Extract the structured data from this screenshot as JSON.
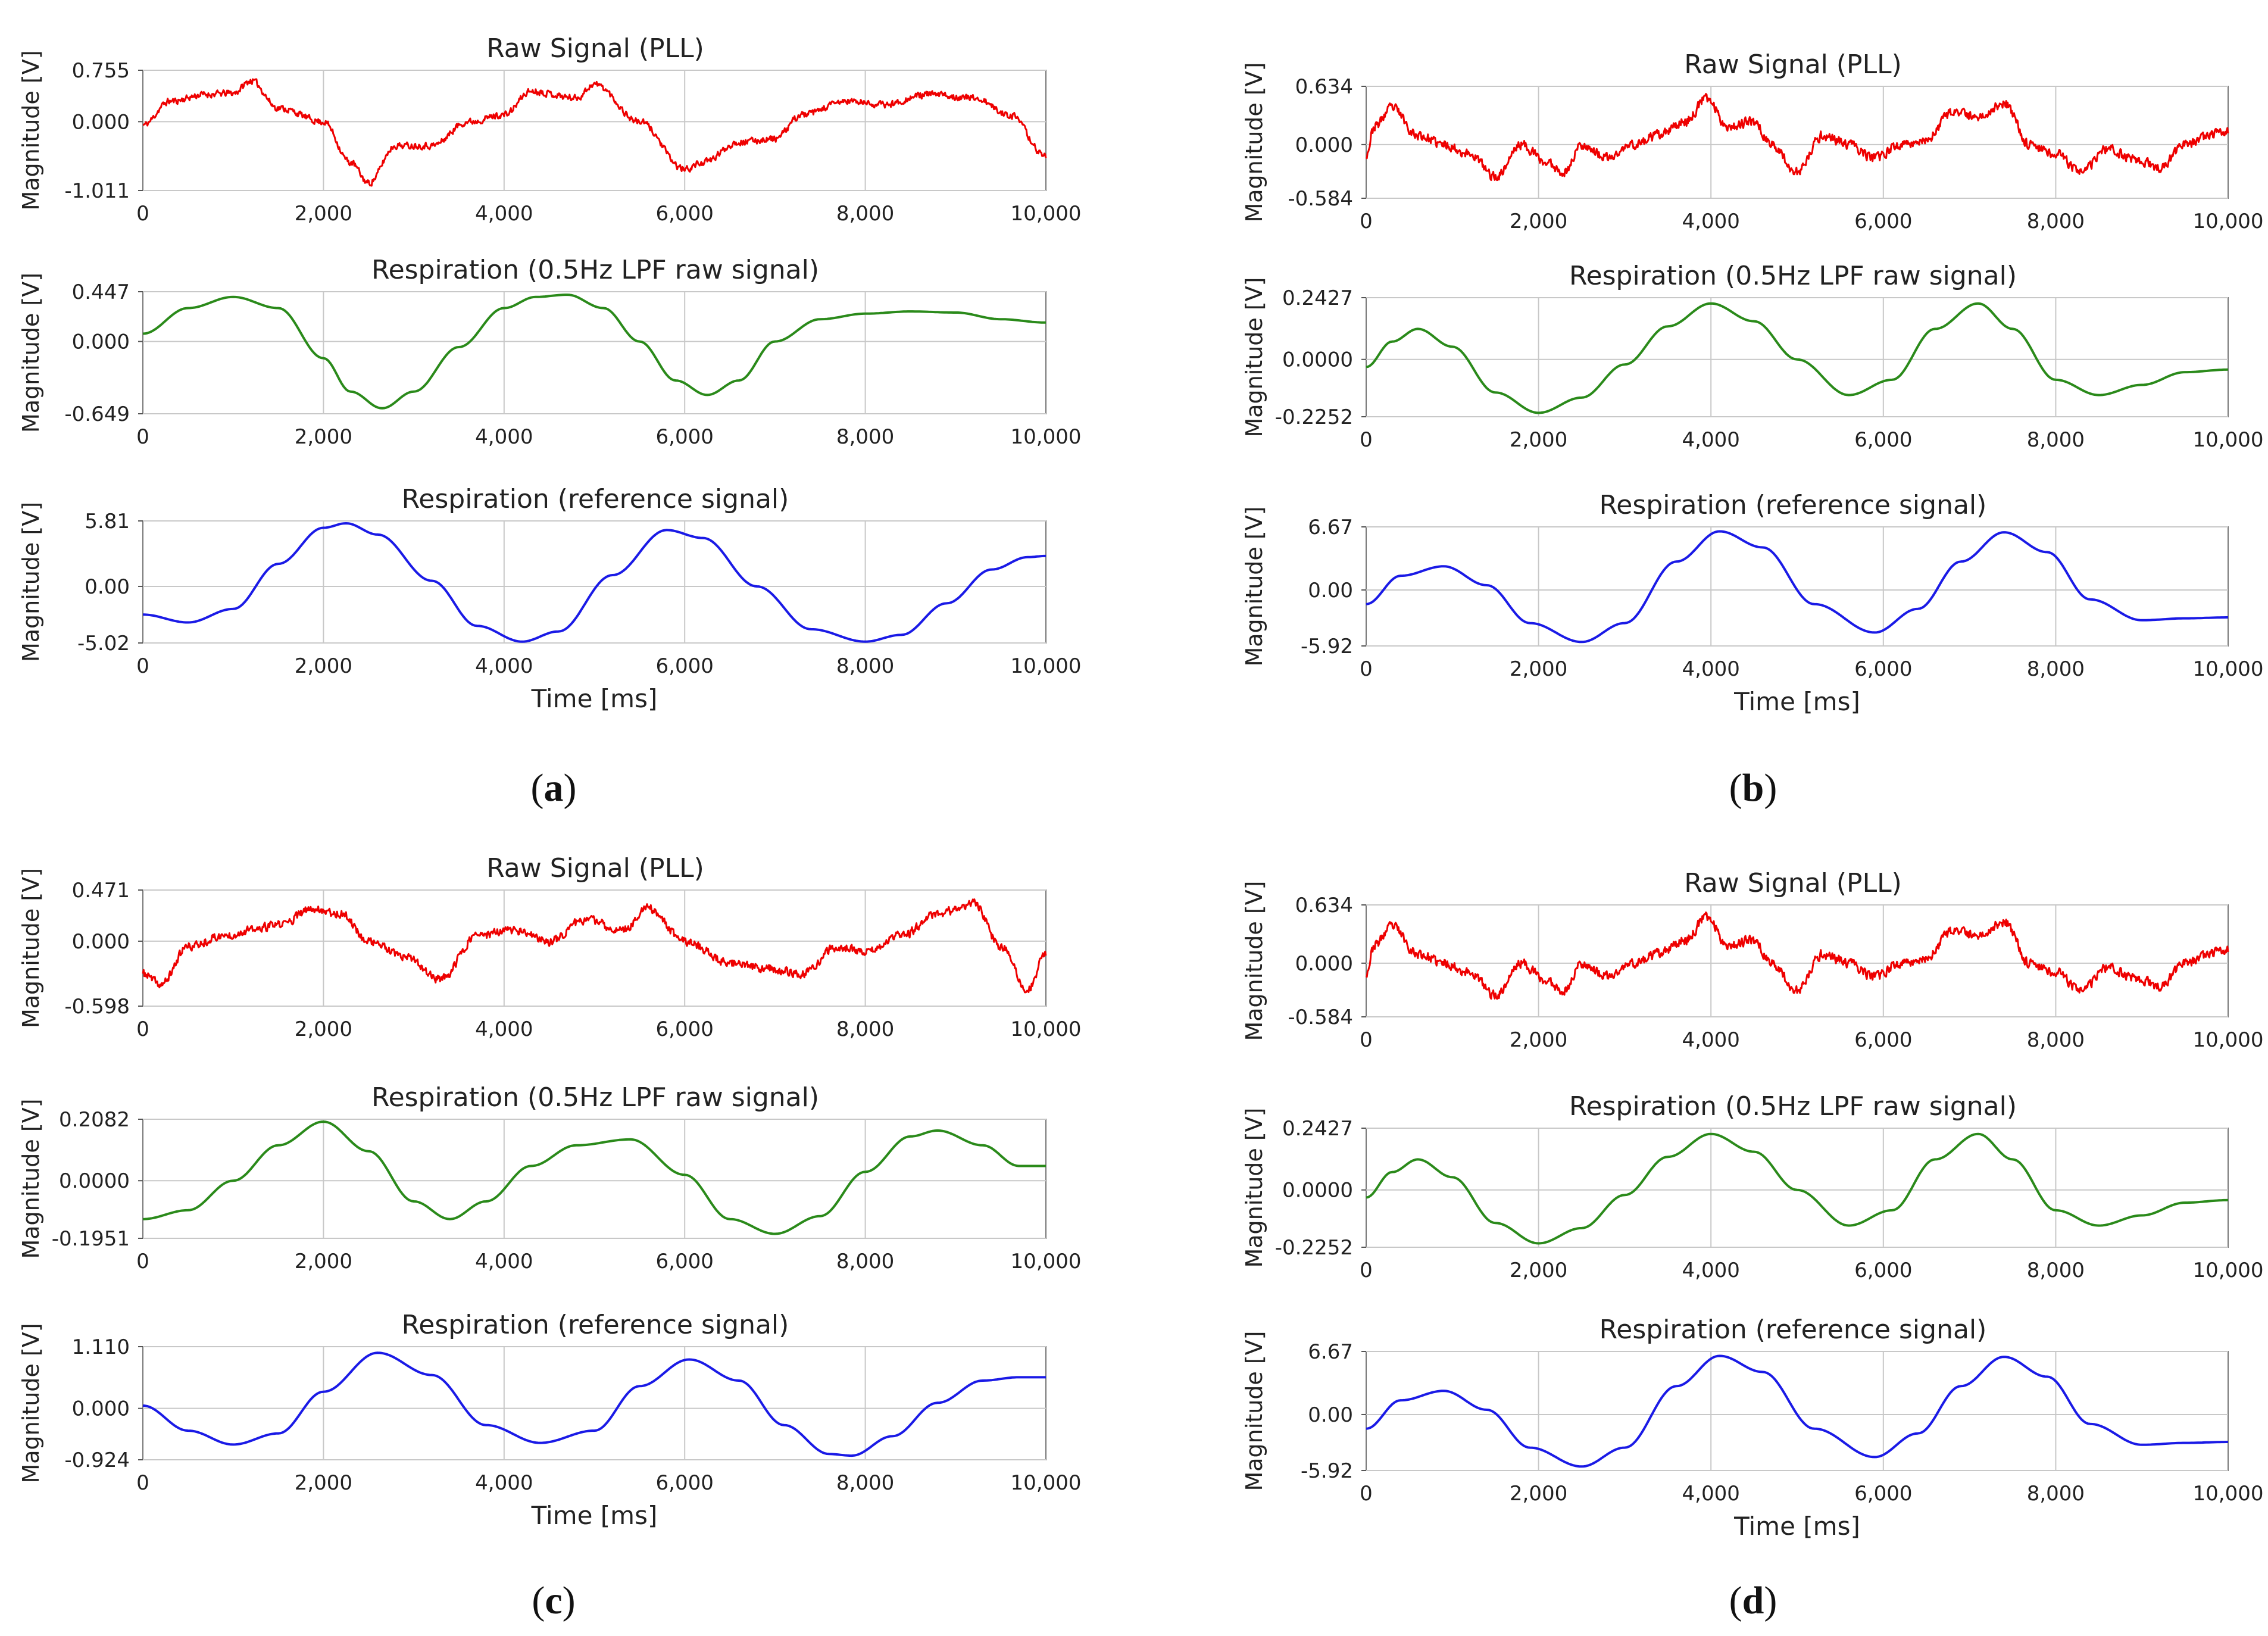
{
  "figure": {
    "captions": [
      {
        "open": "(",
        "letter": "a",
        "close": ")"
      },
      {
        "open": "(",
        "letter": "b",
        "close": ")"
      },
      {
        "open": "(",
        "letter": "c",
        "close": ")"
      },
      {
        "open": "(",
        "letter": "d",
        "close": ")"
      }
    ],
    "x_tick_labels": [
      "0",
      "2,000",
      "4,000",
      "6,000",
      "8,000",
      "10,000"
    ],
    "colors": {
      "raw": "#ee0000",
      "lpf": "#2a8a1a",
      "reference": "#1a1ae6",
      "grid": "#c8c8c8"
    }
  },
  "chart_data": [
    {
      "type": "line",
      "panel": "a",
      "title": "Raw Signal (PLL)",
      "xlabel": "",
      "ylabel": "Magnitude [V]",
      "xlim": [
        0,
        10000
      ],
      "ylim": [
        -1.011,
        0.755
      ],
      "yticks": [
        0.755,
        0.0,
        -1.011
      ],
      "ytick_labels": [
        "0.755",
        "0.000",
        "-1.011"
      ],
      "series": [
        {
          "color": "#ee0000",
          "noise": 0.09,
          "seed": 11,
          "x": [
            0,
            300,
            700,
            1000,
            1200,
            1500,
            2000,
            2300,
            2500,
            2800,
            3200,
            3600,
            4000,
            4300,
            4800,
            5000,
            5500,
            6000,
            6200,
            6600,
            7000,
            7300,
            7800,
            8200,
            8700,
            9200,
            9600,
            10000
          ],
          "y": [
            -0.05,
            0.3,
            0.4,
            0.42,
            0.6,
            0.2,
            0.0,
            -0.6,
            -0.9,
            -0.35,
            -0.35,
            0.0,
            0.1,
            0.45,
            0.35,
            0.55,
            0.0,
            -0.7,
            -0.6,
            -0.3,
            -0.25,
            0.1,
            0.3,
            0.25,
            0.4,
            0.35,
            0.1,
            -0.5
          ]
        }
      ]
    },
    {
      "type": "line",
      "panel": "a",
      "title": "Respiration (0.5Hz LPF raw signal)",
      "xlabel": "",
      "ylabel": "Magnitude [V]",
      "xlim": [
        0,
        10000
      ],
      "ylim": [
        -0.649,
        0.447
      ],
      "yticks": [
        0.447,
        0.0,
        -0.649
      ],
      "ytick_labels": [
        "0.447",
        "0.000",
        "-0.649"
      ],
      "series": [
        {
          "color": "#2a8a1a",
          "x": [
            0,
            500,
            1000,
            1500,
            2000,
            2300,
            2650,
            3000,
            3500,
            4000,
            4350,
            4700,
            5100,
            5500,
            5900,
            6250,
            6600,
            7000,
            7500,
            8000,
            8500,
            9000,
            9500,
            10000
          ],
          "y": [
            0.07,
            0.3,
            0.4,
            0.3,
            -0.15,
            -0.45,
            -0.6,
            -0.45,
            -0.05,
            0.3,
            0.4,
            0.42,
            0.3,
            0.0,
            -0.35,
            -0.48,
            -0.35,
            0.0,
            0.2,
            0.25,
            0.27,
            0.26,
            0.2,
            0.17
          ]
        }
      ]
    },
    {
      "type": "line",
      "panel": "a",
      "title": "Respiration (reference signal)",
      "xlabel": "Time [ms]",
      "ylabel": "Magnitude [V]",
      "xlim": [
        0,
        10000
      ],
      "ylim": [
        -5.02,
        5.81
      ],
      "yticks": [
        5.81,
        0.0,
        -5.02
      ],
      "ytick_labels": [
        "5.81",
        "0.00",
        "-5.02"
      ],
      "series": [
        {
          "color": "#1a1ae6",
          "x": [
            0,
            500,
            1000,
            1500,
            2000,
            2250,
            2600,
            3200,
            3700,
            4200,
            4600,
            5200,
            5800,
            6200,
            6800,
            7400,
            8000,
            8400,
            8900,
            9400,
            9800,
            10000
          ],
          "y": [
            -2.5,
            -3.2,
            -2.0,
            2.0,
            5.2,
            5.6,
            4.6,
            0.5,
            -3.5,
            -4.9,
            -4.0,
            1.0,
            5.0,
            4.3,
            0.0,
            -3.8,
            -4.9,
            -4.3,
            -1.5,
            1.5,
            2.6,
            2.7
          ]
        }
      ]
    },
    {
      "type": "line",
      "panel": "b",
      "title": "Raw Signal (PLL)",
      "xlabel": "",
      "ylabel": "Magnitude [V]",
      "xlim": [
        0,
        10000
      ],
      "ylim": [
        -0.584,
        0.634
      ],
      "yticks": [
        0.634,
        0.0,
        -0.584
      ],
      "ytick_labels": [
        "0.634",
        "0.000",
        "-0.584"
      ],
      "series": [
        {
          "color": "#ee0000",
          "noise": 0.14,
          "seed": 23,
          "x": [
            0,
            100,
            300,
            600,
            900,
            1200,
            1500,
            1800,
            2100,
            2300,
            2500,
            2800,
            3100,
            3400,
            3700,
            3950,
            4200,
            4500,
            4700,
            5000,
            5300,
            5600,
            5900,
            6200,
            6500,
            6800,
            7100,
            7400,
            7700,
            8000,
            8300,
            8600,
            8900,
            9200,
            9500,
            9800,
            10000
          ],
          "y": [
            -0.1,
            0.2,
            0.4,
            0.1,
            0.0,
            -0.1,
            -0.35,
            0.0,
            -0.2,
            -0.3,
            0.0,
            -0.15,
            0.0,
            0.1,
            0.25,
            0.5,
            0.2,
            0.25,
            0.0,
            -0.3,
            0.1,
            0.0,
            -0.15,
            0.0,
            0.05,
            0.35,
            0.3,
            0.45,
            0.0,
            -0.1,
            -0.3,
            -0.05,
            -0.15,
            -0.25,
            0.0,
            0.1,
            0.15
          ]
        }
      ]
    },
    {
      "type": "line",
      "panel": "b",
      "title": "Respiration (0.5Hz LPF raw signal)",
      "xlabel": "",
      "ylabel": "Magnitude [V]",
      "xlim": [
        0,
        10000
      ],
      "ylim": [
        -0.2252,
        0.2427
      ],
      "yticks": [
        0.2427,
        0.0,
        -0.2252
      ],
      "ytick_labels": [
        "0.2427",
        "0.0000",
        "-0.2252"
      ],
      "series": [
        {
          "color": "#2a8a1a",
          "x": [
            0,
            300,
            600,
            1000,
            1500,
            2000,
            2500,
            3000,
            3500,
            4000,
            4500,
            5000,
            5600,
            6100,
            6600,
            7100,
            7500,
            8000,
            8500,
            9000,
            9500,
            10000
          ],
          "y": [
            -0.03,
            0.07,
            0.12,
            0.05,
            -0.13,
            -0.21,
            -0.15,
            -0.02,
            0.13,
            0.22,
            0.15,
            0.0,
            -0.14,
            -0.08,
            0.12,
            0.22,
            0.12,
            -0.08,
            -0.14,
            -0.1,
            -0.05,
            -0.04
          ]
        }
      ]
    },
    {
      "type": "line",
      "panel": "b",
      "title": "Respiration (reference signal)",
      "xlabel": "Time [ms]",
      "ylabel": "Magnitude [V]",
      "xlim": [
        0,
        10000
      ],
      "ylim": [
        -5.92,
        6.67
      ],
      "yticks": [
        6.67,
        0.0,
        -5.92
      ],
      "ytick_labels": [
        "6.67",
        "0.00",
        "-5.92"
      ],
      "series": [
        {
          "color": "#1a1ae6",
          "x": [
            0,
            400,
            900,
            1400,
            1900,
            2500,
            3000,
            3600,
            4100,
            4600,
            5200,
            5900,
            6400,
            6900,
            7400,
            7900,
            8400,
            9000,
            9500,
            10000
          ],
          "y": [
            -1.5,
            1.5,
            2.5,
            0.5,
            -3.5,
            -5.5,
            -3.5,
            3.0,
            6.2,
            4.5,
            -1.5,
            -4.5,
            -2.0,
            3.0,
            6.1,
            4.0,
            -1.0,
            -3.2,
            -3.0,
            -2.9
          ]
        }
      ]
    },
    {
      "type": "line",
      "panel": "c",
      "title": "Raw Signal (PLL)",
      "xlabel": "",
      "ylabel": "Magnitude [V]",
      "xlim": [
        0,
        10000
      ],
      "ylim": [
        -0.598,
        0.471
      ],
      "yticks": [
        0.471,
        0.0,
        -0.598
      ],
      "ytick_labels": [
        "0.471",
        "0.000",
        "-0.598"
      ],
      "series": [
        {
          "color": "#ee0000",
          "noise": 0.12,
          "seed": 37,
          "x": [
            0,
            200,
            500,
            900,
            1200,
            1500,
            1900,
            2200,
            2500,
            2900,
            3300,
            3700,
            4100,
            4500,
            4900,
            5300,
            5600,
            6000,
            6500,
            6900,
            7300,
            7700,
            8000,
            8400,
            8800,
            9200,
            9500,
            9800,
            10000
          ],
          "y": [
            -0.3,
            -0.4,
            -0.05,
            0.05,
            0.1,
            0.15,
            0.3,
            0.25,
            0.0,
            -0.15,
            -0.35,
            0.05,
            0.1,
            0.0,
            0.2,
            0.1,
            0.3,
            0.0,
            -0.2,
            -0.25,
            -0.3,
            -0.05,
            -0.1,
            0.05,
            0.25,
            0.35,
            -0.05,
            -0.45,
            -0.1
          ]
        }
      ]
    },
    {
      "type": "line",
      "panel": "c",
      "title": "Respiration (0.5Hz LPF raw signal)",
      "xlabel": "",
      "ylabel": "Magnitude [V]",
      "xlim": [
        0,
        10000
      ],
      "ylim": [
        -0.1951,
        0.2082
      ],
      "yticks": [
        0.2082,
        0.0,
        -0.1951
      ],
      "ytick_labels": [
        "0.2082",
        "0.0000",
        "-0.1951"
      ],
      "series": [
        {
          "color": "#2a8a1a",
          "x": [
            0,
            500,
            1000,
            1500,
            2000,
            2500,
            3000,
            3400,
            3800,
            4300,
            4800,
            5400,
            6000,
            6500,
            7000,
            7500,
            8000,
            8500,
            8800,
            9300,
            9700,
            10000
          ],
          "y": [
            -0.13,
            -0.1,
            0.0,
            0.12,
            0.2,
            0.1,
            -0.07,
            -0.13,
            -0.07,
            0.05,
            0.12,
            0.14,
            0.02,
            -0.13,
            -0.18,
            -0.12,
            0.03,
            0.15,
            0.17,
            0.12,
            0.05,
            0.05
          ]
        }
      ]
    },
    {
      "type": "line",
      "panel": "c",
      "title": "Respiration (reference signal)",
      "xlabel": "Time [ms]",
      "ylabel": "Magnitude [V]",
      "xlim": [
        0,
        10000
      ],
      "ylim": [
        -0.924,
        1.11
      ],
      "yticks": [
        1.11,
        0.0,
        -0.924
      ],
      "ytick_labels": [
        "1.110",
        "0.000",
        "-0.924"
      ],
      "series": [
        {
          "color": "#1a1ae6",
          "x": [
            0,
            500,
            1000,
            1500,
            2000,
            2600,
            3200,
            3800,
            4400,
            5000,
            5500,
            6050,
            6600,
            7100,
            7600,
            7850,
            8300,
            8800,
            9300,
            9700,
            10000
          ],
          "y": [
            0.05,
            -0.4,
            -0.65,
            -0.45,
            0.3,
            1.0,
            0.6,
            -0.3,
            -0.62,
            -0.4,
            0.4,
            0.88,
            0.5,
            -0.3,
            -0.82,
            -0.85,
            -0.5,
            0.1,
            0.5,
            0.56,
            0.56
          ]
        }
      ]
    },
    {
      "type": "line",
      "panel": "d",
      "title": "Raw Signal (PLL)",
      "xlabel": "",
      "ylabel": "Magnitude [V]",
      "xlim": [
        0,
        10000
      ],
      "ylim": [
        -0.584,
        0.634
      ],
      "yticks": [
        0.634,
        0.0,
        -0.584
      ],
      "ytick_labels": [
        "0.634",
        "0.000",
        "-0.584"
      ],
      "series": [
        {
          "color": "#ee0000",
          "noise": 0.14,
          "seed": 23,
          "x": [
            0,
            100,
            300,
            600,
            900,
            1200,
            1500,
            1800,
            2100,
            2300,
            2500,
            2800,
            3100,
            3400,
            3700,
            3950,
            4200,
            4500,
            4700,
            5000,
            5300,
            5600,
            5900,
            6200,
            6500,
            6800,
            7100,
            7400,
            7700,
            8000,
            8300,
            8600,
            8900,
            9200,
            9500,
            9800,
            10000
          ],
          "y": [
            -0.1,
            0.2,
            0.4,
            0.1,
            0.0,
            -0.1,
            -0.35,
            0.0,
            -0.2,
            -0.3,
            0.0,
            -0.15,
            0.0,
            0.1,
            0.25,
            0.5,
            0.2,
            0.25,
            0.0,
            -0.3,
            0.1,
            0.0,
            -0.15,
            0.0,
            0.05,
            0.35,
            0.3,
            0.45,
            0.0,
            -0.1,
            -0.3,
            -0.05,
            -0.15,
            -0.25,
            0.0,
            0.1,
            0.15
          ]
        }
      ]
    },
    {
      "type": "line",
      "panel": "d",
      "title": "Respiration (0.5Hz LPF raw signal)",
      "xlabel": "",
      "ylabel": "Magnitude [V]",
      "xlim": [
        0,
        10000
      ],
      "ylim": [
        -0.2252,
        0.2427
      ],
      "yticks": [
        0.2427,
        0.0,
        -0.2252
      ],
      "ytick_labels": [
        "0.2427",
        "0.0000",
        "-0.2252"
      ],
      "series": [
        {
          "color": "#2a8a1a",
          "x": [
            0,
            300,
            600,
            1000,
            1500,
            2000,
            2500,
            3000,
            3500,
            4000,
            4500,
            5000,
            5600,
            6100,
            6600,
            7100,
            7500,
            8000,
            8500,
            9000,
            9500,
            10000
          ],
          "y": [
            -0.03,
            0.07,
            0.12,
            0.05,
            -0.13,
            -0.21,
            -0.15,
            -0.02,
            0.13,
            0.22,
            0.15,
            0.0,
            -0.14,
            -0.08,
            0.12,
            0.22,
            0.12,
            -0.08,
            -0.14,
            -0.1,
            -0.05,
            -0.04
          ]
        }
      ]
    },
    {
      "type": "line",
      "panel": "d",
      "title": "Respiration (reference signal)",
      "xlabel": "Time [ms]",
      "ylabel": "Magnitude [V]",
      "xlim": [
        0,
        10000
      ],
      "ylim": [
        -5.92,
        6.67
      ],
      "yticks": [
        6.67,
        0.0,
        -5.92
      ],
      "ytick_labels": [
        "6.67",
        "0.00",
        "-5.92"
      ],
      "series": [
        {
          "color": "#1a1ae6",
          "x": [
            0,
            400,
            900,
            1400,
            1900,
            2500,
            3000,
            3600,
            4100,
            4600,
            5200,
            5900,
            6400,
            6900,
            7400,
            7900,
            8400,
            9000,
            9500,
            10000
          ],
          "y": [
            -1.5,
            1.5,
            2.5,
            0.5,
            -3.5,
            -5.5,
            -3.5,
            3.0,
            6.2,
            4.5,
            -1.5,
            -4.5,
            -2.0,
            3.0,
            6.1,
            4.0,
            -1.0,
            -3.2,
            -3.0,
            -2.9
          ]
        }
      ]
    }
  ]
}
